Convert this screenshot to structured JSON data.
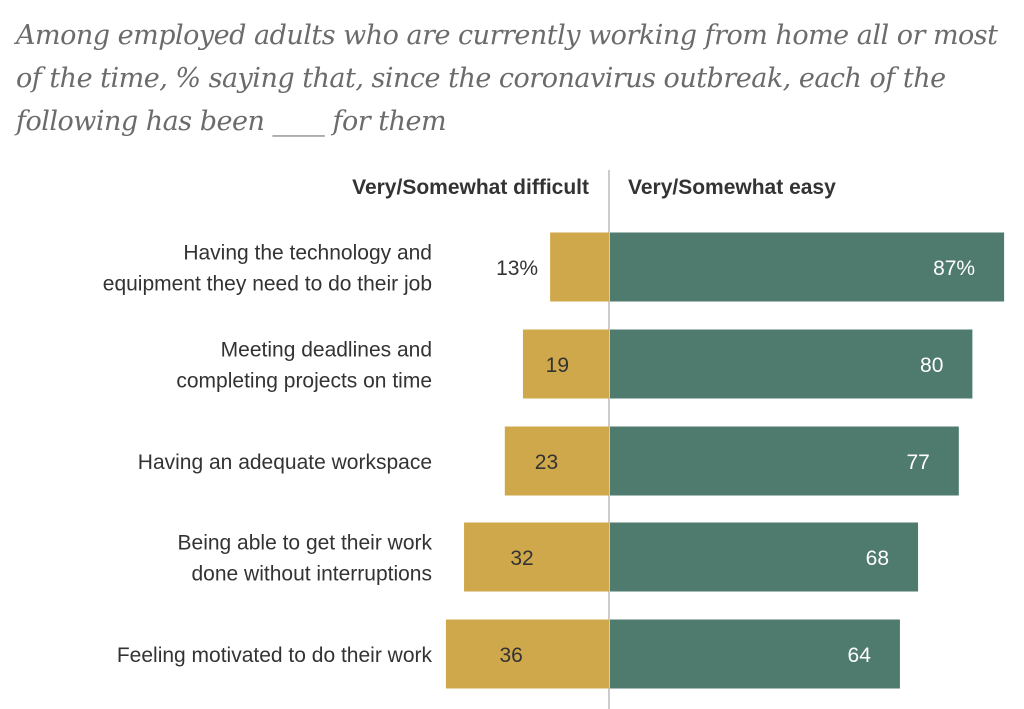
{
  "chart_data": {
    "type": "bar",
    "orientation": "horizontal-diverging",
    "title": "Among employed adults who are currently working from home all or most of the time, % saying that, since the coronavirus outbreak, each of the following has been ____ for them",
    "categories": [
      [
        "Having the technology and",
        "equipment they need to do their job"
      ],
      [
        "Meeting deadlines and",
        "completing projects on time"
      ],
      [
        "Having an adequate workspace"
      ],
      [
        "Being able to get their work",
        "done without interruptions"
      ],
      [
        "Feeling motivated to do their work"
      ]
    ],
    "series": [
      {
        "name": "Very/Somewhat difficult",
        "values": [
          13,
          19,
          23,
          32,
          36
        ],
        "labels": [
          "13%",
          "19",
          "23",
          "32",
          "36"
        ],
        "color": "#CFA84C"
      },
      {
        "name": "Very/Somewhat easy",
        "values": [
          87,
          80,
          77,
          68,
          64
        ],
        "labels": [
          "87%",
          "80",
          "77",
          "68",
          "64"
        ],
        "color": "#4F7A6E"
      }
    ],
    "xlim": [
      0,
      100
    ],
    "grid": false,
    "legend": "top"
  }
}
